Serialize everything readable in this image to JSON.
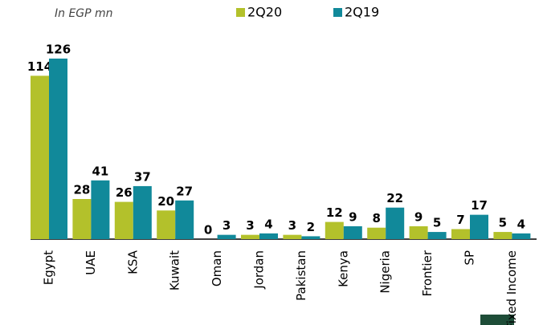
{
  "chart_data": {
    "type": "bar",
    "subtitle": "In EGP mn",
    "categories": [
      "Egypt",
      "UAE",
      "KSA",
      "Kuwait",
      "Oman",
      "Jordan",
      "Pakistan",
      "Kenya",
      "Nigeria",
      "Frontier",
      "SP",
      "Fixed Income"
    ],
    "series": [
      {
        "name": "2Q20",
        "color": "#b3c12b",
        "values": [
          114,
          28,
          26,
          20,
          0,
          3,
          3,
          12,
          8,
          9,
          7,
          5
        ]
      },
      {
        "name": "2Q19",
        "color": "#11899a",
        "values": [
          126,
          41,
          37,
          27,
          3,
          4,
          2,
          9,
          22,
          5,
          17,
          4
        ]
      }
    ]
  }
}
